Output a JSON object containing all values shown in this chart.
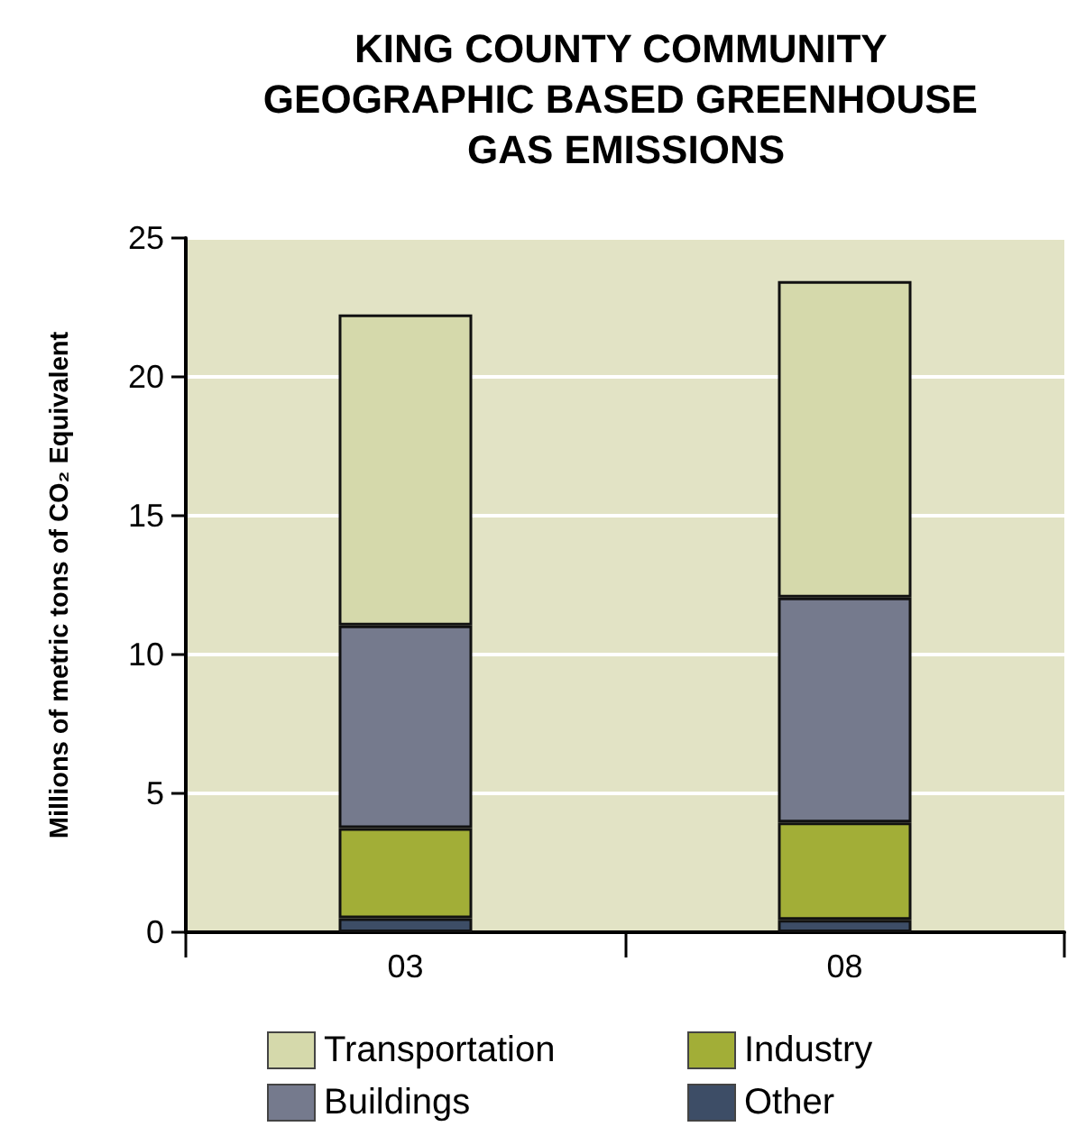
{
  "chart_data": {
    "type": "bar",
    "title": "KING COUNTY COMMUNITY GEOGRAPHIC BASED GREENHOUSE GAS EMISSIONS",
    "ylabel": "Millions of metric tons of CO₂ Equivalent",
    "categories": [
      "03",
      "08"
    ],
    "stacked": true,
    "series": [
      {
        "name": "Other",
        "color": "#3d4d66",
        "values": [
          0.5,
          0.45
        ]
      },
      {
        "name": "Industry",
        "color": "#a2ae37",
        "values": [
          3.25,
          3.5
        ]
      },
      {
        "name": "Buildings",
        "color": "#757a8d",
        "values": [
          7.3,
          8.1
        ]
      },
      {
        "name": "Transportation",
        "color": "#d5d9ab",
        "values": [
          11.2,
          11.4
        ]
      }
    ],
    "ylim": [
      0,
      25
    ],
    "yticks": [
      0,
      5,
      10,
      15,
      20,
      25
    ],
    "grid": "y",
    "legend": "bottom"
  }
}
